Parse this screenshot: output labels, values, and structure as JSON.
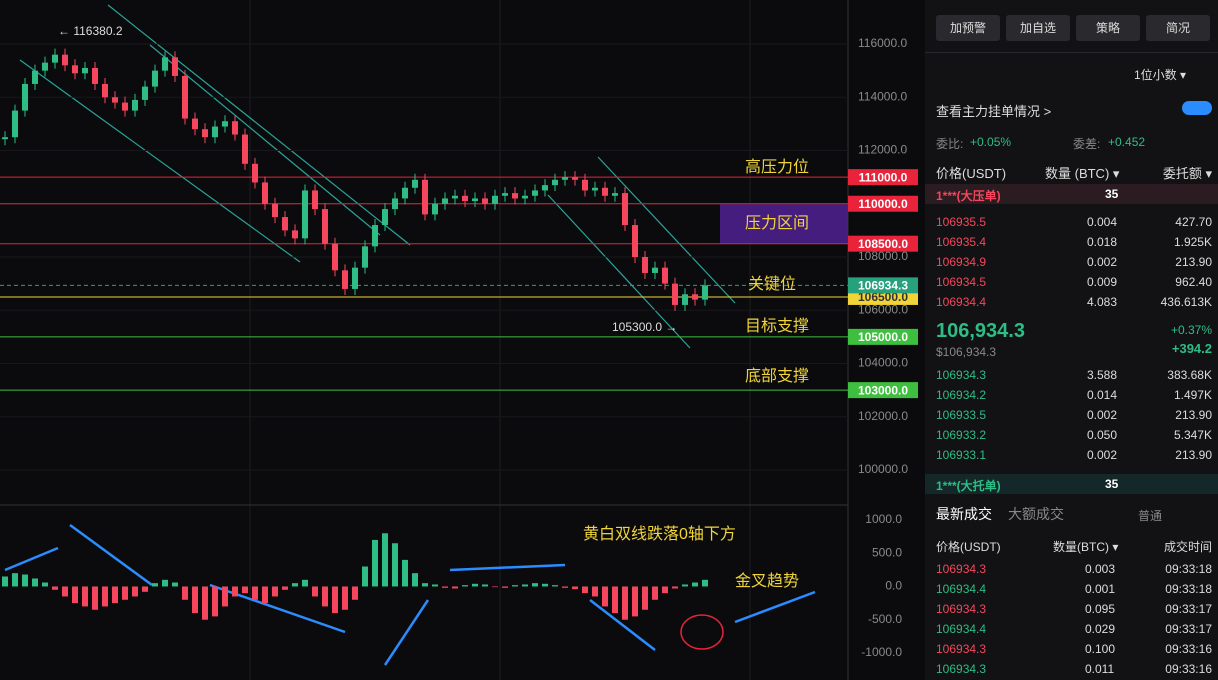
{
  "chart": {
    "ylim": [
      98873,
      117653
    ],
    "yticks": [
      {
        "value": 116000,
        "label": "116000.0"
      },
      {
        "value": 114000,
        "label": "114000.0"
      },
      {
        "value": 112000,
        "label": "112000.0"
      },
      {
        "value": 110000,
        "label": "110000.0"
      },
      {
        "value": 108000,
        "label": "108000.0"
      },
      {
        "value": 106000,
        "label": "106000.0"
      },
      {
        "value": 104000,
        "label": "104000.0"
      },
      {
        "value": 102000,
        "label": "102000.0"
      },
      {
        "value": 100000,
        "label": "100000.0"
      }
    ],
    "levels": [
      {
        "value": 111000,
        "label": "111000.0",
        "color": "#e8233a"
      },
      {
        "value": 110000,
        "label": "110000.0",
        "color": "#e8233a"
      },
      {
        "value": 108500,
        "label": "108500.0",
        "color": "#e8233a"
      },
      {
        "value": 106500,
        "label": "106500.0",
        "color": "#f0d43a"
      },
      {
        "value": 106934.3,
        "label": "106934.3",
        "color": "#26a17b"
      },
      {
        "value": 105000,
        "label": "105000.0",
        "color": "#3fbf3f"
      },
      {
        "value": 103000,
        "label": "103000.0",
        "color": "#3fbf3f"
      }
    ],
    "notes": [
      "高压力位",
      "压力区间",
      "关键位",
      "目标支撑",
      "底部支撑"
    ],
    "high_label": "← 116380.2",
    "low_label": "105300.0 →",
    "closes": [
      112500,
      113500,
      114500,
      115000,
      115300,
      115600,
      115200,
      114900,
      115100,
      114500,
      114000,
      113800,
      113500,
      113900,
      114400,
      115000,
      115500,
      114800,
      113200,
      112800,
      112500,
      112900,
      113100,
      112600,
      111500,
      110800,
      110000,
      109500,
      109000,
      108700,
      110500,
      109800,
      108500,
      107500,
      106800,
      107600,
      108400,
      109200,
      109800,
      110200,
      110600,
      110900,
      109600,
      110000,
      110200,
      110300,
      110100,
      110200,
      110000,
      110300,
      110400,
      110200,
      110300,
      110500,
      110700,
      110900,
      111000,
      110900,
      110500,
      110600,
      110300,
      110400,
      109200,
      108000,
      107400,
      107600,
      107000,
      106200,
      106600,
      106400,
      106934.3
    ],
    "macd": {
      "ylim": [
        -1256,
        1150
      ],
      "yticks": [
        {
          "value": 1000,
          "label": "1000.0"
        },
        {
          "value": 500,
          "label": "500.0"
        },
        {
          "value": 0,
          "label": "0.0"
        },
        {
          "value": -500,
          "label": "-500.0"
        },
        {
          "value": -1000,
          "label": "-1000.0"
        }
      ],
      "hist": [
        150,
        200,
        180,
        120,
        60,
        -50,
        -150,
        -250,
        -300,
        -350,
        -300,
        -250,
        -200,
        -150,
        -80,
        50,
        100,
        60,
        -200,
        -400,
        -500,
        -450,
        -300,
        -150,
        -100,
        -200,
        -250,
        -150,
        -50,
        50,
        100,
        -150,
        -300,
        -400,
        -350,
        -200,
        300,
        700,
        800,
        650,
        400,
        200,
        50,
        30,
        -20,
        -30,
        20,
        40,
        30,
        -10,
        -20,
        20,
        30,
        50,
        40,
        20,
        -20,
        -40,
        -100,
        -150,
        -300,
        -400,
        -500,
        -450,
        -350,
        -200,
        -100,
        -30,
        30,
        60,
        100
      ],
      "notes": [
        "黄白双线跌落0轴下方",
        "金叉趋势"
      ]
    }
  },
  "panel": {
    "buttons": [
      "加预警",
      "加自选",
      "策略",
      "简况"
    ],
    "decimals": "1位小数 ▾",
    "toggle_label": "查看主力挂单情况 >",
    "ratio_label": "委比:",
    "ratio": "+0.05%",
    "diff_label": "委差:",
    "diff": "+0.452",
    "book_headers": [
      "价格(USDT)",
      "数量 (BTC) ▾",
      "委托额 ▾"
    ],
    "ask_big": {
      "label": "1***(大压单)",
      "qty": "35"
    },
    "asks": [
      [
        "106935.5",
        "0.004",
        "427.70"
      ],
      [
        "106935.4",
        "0.018",
        "1.925K"
      ],
      [
        "106934.9",
        "0.002",
        "213.90"
      ],
      [
        "106934.5",
        "0.009",
        "962.40"
      ],
      [
        "106934.4",
        "4.083",
        "436.613K"
      ]
    ],
    "last": "106,934.3",
    "last_usd": "$106,934.3",
    "change_pct": "+0.37%",
    "change": "+394.2",
    "bids": [
      [
        "106934.3",
        "3.588",
        "383.68K"
      ],
      [
        "106934.2",
        "0.014",
        "1.497K"
      ],
      [
        "106933.5",
        "0.002",
        "213.90"
      ],
      [
        "106933.2",
        "0.050",
        "5.347K"
      ],
      [
        "106933.1",
        "0.002",
        "213.90"
      ]
    ],
    "bid_big": {
      "label": "1***(大托单)",
      "qty": "35"
    },
    "tabs": [
      "最新成交",
      "大额成交"
    ],
    "normal": "普通",
    "trade_headers": [
      "价格(USDT)",
      "数量(BTC) ▾",
      "成交时间"
    ],
    "trades": [
      [
        "106934.3",
        "0.003",
        "09:33:18"
      ],
      [
        "106934.4",
        "0.001",
        "09:33:18"
      ],
      [
        "106934.3",
        "0.095",
        "09:33:17"
      ],
      [
        "106934.4",
        "0.029",
        "09:33:17"
      ],
      [
        "106934.3",
        "0.100",
        "09:33:16"
      ],
      [
        "106934.3",
        "0.011",
        "09:33:16"
      ]
    ]
  }
}
